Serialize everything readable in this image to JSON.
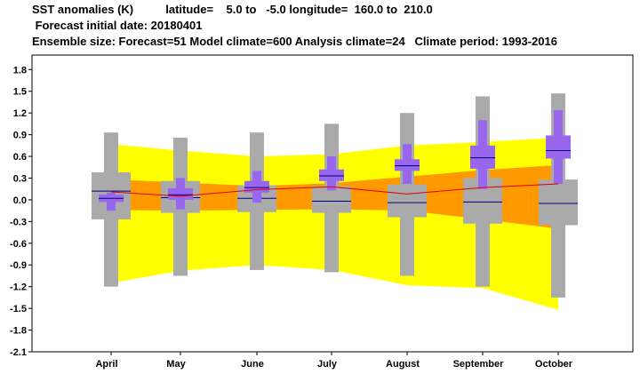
{
  "header": {
    "line1": "SST anomalies (K)          latitude=    5.0 to   -5.0 longitude=  160.0 to  210.0",
    "line2": " Forecast initial date: 20180401",
    "line3": "Ensemble size: Forecast=51 Model climate=600 Analysis climate=24   Climate period: 1993-2016"
  },
  "colors": {
    "outer_band": "#ffff00",
    "inner_band": "#ff9900",
    "climate_box": "#aaaaaa",
    "forecast_box": "#9966ee",
    "analysis_line": "#dd0000",
    "median_line": "#000080"
  },
  "chart_data": {
    "type": "boxplot",
    "title": "SST anomalies (K)",
    "categories": [
      "April",
      "May",
      "June",
      "July",
      "August",
      "September",
      "October"
    ],
    "ylim": [
      -2.1,
      2.0
    ],
    "yticks": [
      1.8,
      1.5,
      1.2,
      0.9,
      0.6,
      0.3,
      0.0,
      -0.3,
      -0.6,
      -0.9,
      -1.2,
      -1.5,
      -1.8,
      -2.1
    ],
    "ytick_labels": [
      "1.8",
      "1.5",
      "1.2",
      "0.9",
      "0.6",
      "0.3",
      "0.0",
      "-0.3",
      "-0.6",
      "-0.9",
      "-1.2",
      "-1.5",
      "-1.8",
      "-2.1"
    ],
    "bands": {
      "outer_upper": [
        0.77,
        0.68,
        0.6,
        0.63,
        0.75,
        0.8,
        0.86
      ],
      "outer_lower": [
        -1.15,
        -0.98,
        -0.9,
        -0.97,
        -1.18,
        -1.22,
        -1.52
      ],
      "inner_upper": [
        0.28,
        0.24,
        0.19,
        0.23,
        0.32,
        0.41,
        0.48
      ],
      "inner_lower": [
        -0.14,
        -0.15,
        -0.14,
        -0.13,
        -0.15,
        -0.27,
        -0.4
      ]
    },
    "analysis_line": [
      0.11,
      0.05,
      0.14,
      0.18,
      0.08,
      0.17,
      0.22
    ],
    "series": [
      {
        "name": "Model climate",
        "whisker_low": [
          -1.2,
          -1.05,
          -0.97,
          -1.0,
          -1.05,
          -1.2,
          -1.35
        ],
        "box_low": [
          -0.27,
          -0.18,
          -0.17,
          -0.18,
          -0.24,
          -0.33,
          -0.35
        ],
        "box_high": [
          0.38,
          0.26,
          0.2,
          0.19,
          0.21,
          0.3,
          0.28
        ],
        "median": [
          0.12,
          0.03,
          0.02,
          -0.02,
          -0.04,
          -0.03,
          -0.05
        ],
        "whisker_high": [
          0.93,
          0.86,
          0.93,
          1.05,
          1.2,
          1.43,
          1.47
        ]
      },
      {
        "name": "Forecast",
        "whisker_low": [
          -0.15,
          -0.13,
          -0.04,
          0.13,
          0.22,
          0.15,
          0.22
        ],
        "box_low": [
          -0.03,
          0.0,
          0.1,
          0.26,
          0.4,
          0.43,
          0.57
        ],
        "box_high": [
          0.07,
          0.16,
          0.26,
          0.42,
          0.56,
          0.75,
          0.89
        ],
        "median": [
          0.02,
          0.07,
          0.17,
          0.33,
          0.47,
          0.58,
          0.68
        ],
        "whisker_high": [
          0.1,
          0.3,
          0.4,
          0.6,
          0.77,
          1.1,
          1.24
        ]
      }
    ]
  }
}
